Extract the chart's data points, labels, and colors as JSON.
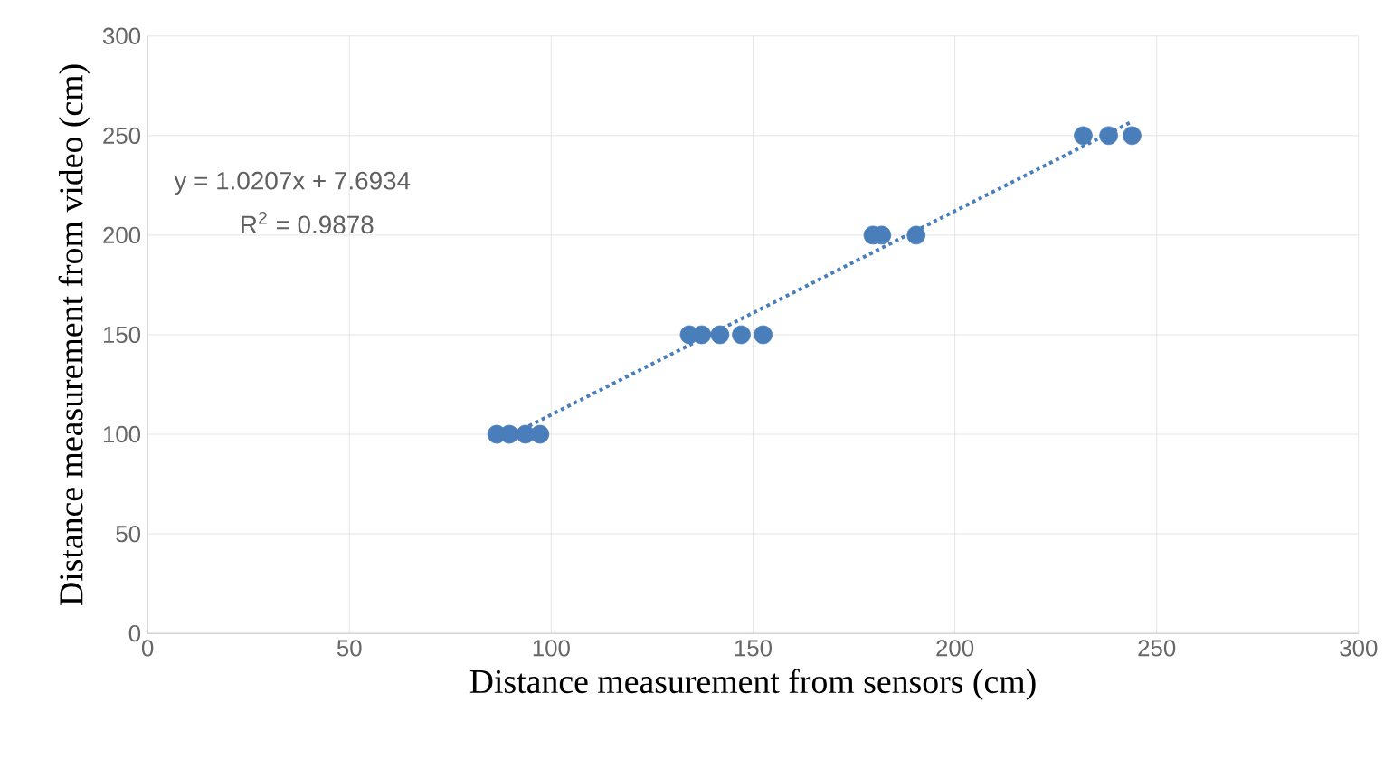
{
  "chart_data": {
    "type": "scatter",
    "xlabel": "Distance measurement from sensors (cm)",
    "ylabel": "Distance measurement from video (cm)",
    "xlim": [
      0,
      300
    ],
    "ylim": [
      0,
      300
    ],
    "xticks": [
      0,
      50,
      100,
      150,
      200,
      250,
      300
    ],
    "yticks": [
      0,
      50,
      100,
      150,
      200,
      250,
      300
    ],
    "grid": true,
    "series": [
      {
        "type": "scatter",
        "marker": "circle",
        "color": "#4a7ebb",
        "x": [
          86.5,
          89.6,
          93.6,
          97.2,
          134.2,
          137.3,
          141.8,
          147.1,
          152.5,
          179.7,
          181.9,
          190.4,
          231.8,
          238.1,
          243.9
        ],
        "values": [
          100,
          100,
          100,
          100,
          150,
          150,
          150,
          150,
          150,
          200,
          200,
          200,
          250,
          250,
          250
        ]
      },
      {
        "type": "line",
        "color": "#4a7ebb",
        "line_style": "dotted",
        "marker": "none",
        "x": [
          86.5,
          243.9
        ],
        "values": [
          96,
          257
        ]
      }
    ],
    "annotations": [
      "y = 1.0207x + 7.6934",
      "R$^{2}$ = 0.9878"
    ]
  }
}
